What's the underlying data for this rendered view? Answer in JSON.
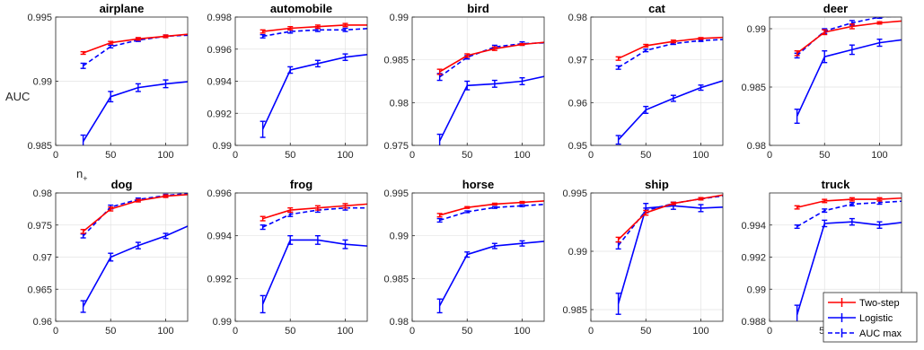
{
  "figure": {
    "ylabel": "AUC",
    "xlabel_main": "n",
    "xlabel_sub": "+"
  },
  "legend": {
    "placement": "lower-right of truck panel",
    "entries": [
      {
        "label": "Two-step",
        "color": "#ff0000",
        "style": "solid"
      },
      {
        "label": "Logistic",
        "color": "#0000ff",
        "style": "solid"
      },
      {
        "label": "AUC max",
        "color": "#0000ff",
        "style": "dashed"
      }
    ]
  },
  "chart_data": [
    {
      "type": "line",
      "title": "airplane",
      "x": [
        25,
        50,
        75,
        100,
        125
      ],
      "xlim": [
        0,
        120
      ],
      "xticks": [
        "0",
        "50",
        "100"
      ],
      "ylim": [
        0.985,
        0.995
      ],
      "yticks": [
        0.985,
        0.99,
        0.995
      ],
      "ytick_labels": [
        "0.985",
        "0.99",
        "0.995"
      ],
      "grid": true,
      "series": [
        {
          "name": "Two-step",
          "values": [
            0.9922,
            0.993,
            0.9933,
            0.9935,
            0.9937
          ],
          "err": [
            0.0001,
            0.0001,
            0.0001,
            0.0001,
            0.0001
          ]
        },
        {
          "name": "Logistic",
          "values": [
            0.9853,
            0.9888,
            0.9895,
            0.9898,
            0.99
          ],
          "err": [
            0.0005,
            0.0004,
            0.0003,
            0.0003,
            0.0003
          ]
        },
        {
          "name": "AUC max",
          "values": [
            0.9912,
            0.9927,
            0.9932,
            0.9935,
            0.9936
          ],
          "err": [
            0.0002,
            0.0001,
            0.0001,
            0.0001,
            0.0001
          ]
        }
      ]
    },
    {
      "type": "line",
      "title": "automobile",
      "x": [
        25,
        50,
        75,
        100,
        125
      ],
      "xlim": [
        0,
        120
      ],
      "xticks": [
        "0",
        "50",
        "100"
      ],
      "ylim": [
        0.99,
        0.998
      ],
      "yticks": [
        0.99,
        0.992,
        0.994,
        0.996,
        0.998
      ],
      "ytick_labels": [
        "0.99",
        "0.992",
        "0.994",
        "0.996",
        "0.998"
      ],
      "grid": true,
      "series": [
        {
          "name": "Two-step",
          "values": [
            0.9971,
            0.9973,
            0.9974,
            0.9975,
            0.9975
          ],
          "err": [
            0.0001,
            0.0001,
            0.0001,
            0.0001,
            0.0001
          ]
        },
        {
          "name": "Logistic",
          "values": [
            0.991,
            0.9947,
            0.9951,
            0.9955,
            0.9957
          ],
          "err": [
            0.0005,
            0.0002,
            0.0002,
            0.0002,
            0.0002
          ]
        },
        {
          "name": "AUC max",
          "values": [
            0.9968,
            0.9971,
            0.9972,
            0.9972,
            0.9973
          ],
          "err": [
            0.0001,
            0.0001,
            0.0001,
            0.0001,
            0.0001
          ]
        }
      ]
    },
    {
      "type": "line",
      "title": "bird",
      "x": [
        25,
        50,
        75,
        100,
        125
      ],
      "xlim": [
        0,
        120
      ],
      "xticks": [
        "0",
        "50",
        "100"
      ],
      "ylim": [
        0.975,
        0.99
      ],
      "yticks": [
        0.975,
        0.98,
        0.985,
        0.99
      ],
      "ytick_labels": [
        "0.975",
        "0.98",
        "0.985",
        "0.99"
      ],
      "grid": true,
      "series": [
        {
          "name": "Two-step",
          "values": [
            0.9836,
            0.9855,
            0.9863,
            0.9868,
            0.9871
          ],
          "err": [
            0.0003,
            0.0002,
            0.0002,
            0.0001,
            0.0001
          ]
        },
        {
          "name": "Logistic",
          "values": [
            0.9755,
            0.982,
            0.9822,
            0.9825,
            0.9832
          ],
          "err": [
            0.0008,
            0.0005,
            0.0004,
            0.0004,
            0.0004
          ]
        },
        {
          "name": "AUC max",
          "values": [
            0.983,
            0.9853,
            0.9865,
            0.9869,
            0.987
          ],
          "err": [
            0.0004,
            0.0002,
            0.0002,
            0.0002,
            0.0001
          ]
        }
      ]
    },
    {
      "type": "line",
      "title": "cat",
      "x": [
        25,
        50,
        75,
        100,
        125
      ],
      "xlim": [
        0,
        120
      ],
      "xticks": [
        "0",
        "50",
        "100"
      ],
      "ylim": [
        0.95,
        0.98
      ],
      "yticks": [
        0.95,
        0.96,
        0.97,
        0.98
      ],
      "ytick_labels": [
        "0.95",
        "0.96",
        "0.97",
        "0.98"
      ],
      "grid": true,
      "series": [
        {
          "name": "Two-step",
          "values": [
            0.9703,
            0.9733,
            0.9743,
            0.975,
            0.9753
          ],
          "err": [
            0.0004,
            0.0003,
            0.0003,
            0.0002,
            0.0002
          ]
        },
        {
          "name": "Logistic",
          "values": [
            0.9513,
            0.9583,
            0.961,
            0.9635,
            0.9655
          ],
          "err": [
            0.001,
            0.0008,
            0.0007,
            0.0006,
            0.0006
          ]
        },
        {
          "name": "AUC max",
          "values": [
            0.9682,
            0.9722,
            0.9738,
            0.9745,
            0.9748
          ],
          "err": [
            0.0004,
            0.0003,
            0.0002,
            0.0002,
            0.0002
          ]
        }
      ]
    },
    {
      "type": "line",
      "title": "deer",
      "x": [
        25,
        50,
        75,
        100,
        125
      ],
      "xlim": [
        0,
        120
      ],
      "xticks": [
        "0",
        "50",
        "100"
      ],
      "ylim": [
        0.98,
        0.991
      ],
      "yticks": [
        0.98,
        0.985,
        0.99
      ],
      "ytick_labels": [
        "0.98",
        "0.985",
        "0.99"
      ],
      "grid": true,
      "series": [
        {
          "name": "Two-step",
          "values": [
            0.9879,
            0.9897,
            0.9902,
            0.9905,
            0.9907
          ],
          "err": [
            0.0002,
            0.0002,
            0.0002,
            0.0001,
            0.0001
          ]
        },
        {
          "name": "Logistic",
          "values": [
            0.9825,
            0.9876,
            0.9882,
            0.9888,
            0.9891
          ],
          "err": [
            0.0006,
            0.0005,
            0.0004,
            0.0003,
            0.0003
          ]
        },
        {
          "name": "AUC max",
          "values": [
            0.9877,
            0.9898,
            0.9905,
            0.991,
            0.9911
          ],
          "err": [
            0.0002,
            0.0002,
            0.0002,
            0.0001,
            0.0001
          ]
        }
      ]
    },
    {
      "type": "line",
      "title": "dog",
      "x": [
        25,
        50,
        75,
        100,
        125
      ],
      "xlim": [
        0,
        120
      ],
      "xticks": [
        "0",
        "50",
        "100"
      ],
      "ylim": [
        0.96,
        0.98
      ],
      "yticks": [
        0.96,
        0.965,
        0.97,
        0.975,
        0.98
      ],
      "ytick_labels": [
        "0.96",
        "0.965",
        "0.97",
        "0.975",
        "0.98"
      ],
      "grid": true,
      "series": [
        {
          "name": "Two-step",
          "values": [
            0.974,
            0.9775,
            0.9788,
            0.9795,
            0.9798
          ],
          "err": [
            0.0003,
            0.0003,
            0.0002,
            0.0002,
            0.0002
          ]
        },
        {
          "name": "Logistic",
          "values": [
            0.9623,
            0.97,
            0.9718,
            0.9733,
            0.9752
          ],
          "err": [
            0.0009,
            0.0006,
            0.0005,
            0.0004,
            0.0004
          ]
        },
        {
          "name": "AUC max",
          "values": [
            0.9733,
            0.9778,
            0.979,
            0.9796,
            0.98
          ],
          "err": [
            0.0003,
            0.0003,
            0.0002,
            0.0002,
            0.0002
          ]
        }
      ]
    },
    {
      "type": "line",
      "title": "frog",
      "x": [
        25,
        50,
        75,
        100,
        125
      ],
      "xlim": [
        0,
        120
      ],
      "xticks": [
        "0",
        "50",
        "100"
      ],
      "ylim": [
        0.99,
        0.996
      ],
      "yticks": [
        0.99,
        0.992,
        0.994,
        0.996
      ],
      "ytick_labels": [
        "0.99",
        "0.992",
        "0.994",
        "0.996"
      ],
      "grid": true,
      "series": [
        {
          "name": "Two-step",
          "values": [
            0.9948,
            0.9952,
            0.9953,
            0.9954,
            0.9955
          ],
          "err": [
            0.0001,
            0.0001,
            0.0001,
            0.0001,
            0.0001
          ]
        },
        {
          "name": "Logistic",
          "values": [
            0.9908,
            0.9938,
            0.9938,
            0.9936,
            0.9935
          ],
          "err": [
            0.0004,
            0.0002,
            0.0002,
            0.0002,
            0.0002
          ]
        },
        {
          "name": "AUC max",
          "values": [
            0.9944,
            0.995,
            0.9952,
            0.9953,
            0.9953
          ],
          "err": [
            0.0001,
            0.0001,
            0.0001,
            0.0001,
            0.0001
          ]
        }
      ]
    },
    {
      "type": "line",
      "title": "horse",
      "x": [
        25,
        50,
        75,
        100,
        125
      ],
      "xlim": [
        0,
        120
      ],
      "xticks": [
        "0",
        "50",
        "100"
      ],
      "ylim": [
        0.98,
        0.995
      ],
      "yticks": [
        0.98,
        0.985,
        0.99,
        0.995
      ],
      "ytick_labels": [
        "0.98",
        "0.985",
        "0.99",
        "0.995"
      ],
      "grid": true,
      "series": [
        {
          "name": "Two-step",
          "values": [
            0.9924,
            0.9933,
            0.9937,
            0.9939,
            0.9941
          ],
          "err": [
            0.0002,
            0.0001,
            0.0001,
            0.0001,
            0.0001
          ]
        },
        {
          "name": "Logistic",
          "values": [
            0.9818,
            0.9878,
            0.9888,
            0.9891,
            0.9894
          ],
          "err": [
            0.0008,
            0.0003,
            0.0003,
            0.0003,
            0.0003
          ]
        },
        {
          "name": "AUC max",
          "values": [
            0.9918,
            0.9928,
            0.9933,
            0.9935,
            0.9937
          ],
          "err": [
            0.0002,
            0.0001,
            0.0001,
            0.0001,
            0.0001
          ]
        }
      ]
    },
    {
      "type": "line",
      "title": "ship",
      "x": [
        25,
        50,
        75,
        100,
        125
      ],
      "xlim": [
        0,
        120
      ],
      "xticks": [
        "0",
        "50",
        "100"
      ],
      "ylim": [
        0.984,
        0.995
      ],
      "yticks": [
        0.985,
        0.99,
        0.995
      ],
      "ytick_labels": [
        "0.985",
        "0.99",
        "0.995"
      ],
      "grid": true,
      "series": [
        {
          "name": "Two-step",
          "values": [
            0.991,
            0.9933,
            0.9941,
            0.9945,
            0.9949
          ],
          "err": [
            0.0002,
            0.0002,
            0.0001,
            0.0001,
            0.0001
          ]
        },
        {
          "name": "Logistic",
          "values": [
            0.9855,
            0.9937,
            0.9939,
            0.9937,
            0.9938
          ],
          "err": [
            0.0009,
            0.0004,
            0.0003,
            0.0003,
            0.0003
          ]
        },
        {
          "name": "AUC max",
          "values": [
            0.9905,
            0.9935,
            0.9941,
            0.9945,
            0.9948
          ],
          "err": [
            0.0003,
            0.0002,
            0.0001,
            0.0001,
            0.0001
          ]
        }
      ]
    },
    {
      "type": "line",
      "title": "truck",
      "x": [
        25,
        50,
        75,
        100,
        125
      ],
      "xlim": [
        0,
        120
      ],
      "xticks": [
        "0",
        "50",
        "100"
      ],
      "ylim": [
        0.988,
        0.996
      ],
      "yticks": [
        0.988,
        0.99,
        0.992,
        0.994
      ],
      "ytick_labels": [
        "0.988",
        "0.99",
        "0.992",
        "0.994"
      ],
      "grid": true,
      "series": [
        {
          "name": "Two-step",
          "values": [
            0.9951,
            0.9955,
            0.9956,
            0.9956,
            0.9957
          ],
          "err": [
            0.0001,
            0.0001,
            0.0001,
            0.0001,
            0.0001
          ]
        },
        {
          "name": "Logistic",
          "values": [
            0.9884,
            0.9941,
            0.9942,
            0.994,
            0.9942
          ],
          "err": [
            0.0006,
            0.0002,
            0.0002,
            0.0002,
            0.0002
          ]
        },
        {
          "name": "AUC max",
          "values": [
            0.9939,
            0.9949,
            0.9953,
            0.9954,
            0.9955
          ],
          "err": [
            0.0001,
            0.0001,
            0.0001,
            0.0001,
            0.0001
          ]
        }
      ]
    }
  ]
}
